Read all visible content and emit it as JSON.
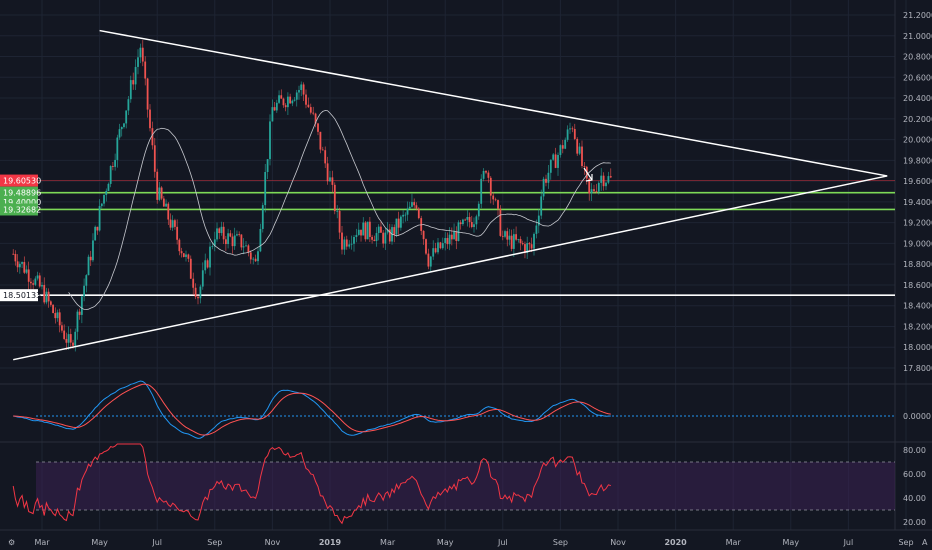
{
  "chart_data": {
    "type": "candlestick",
    "title": "",
    "price_axis": {
      "ticks": [
        "17.8000",
        "18.0000",
        "18.2000",
        "18.4000",
        "18.6000",
        "18.8000",
        "19.0000",
        "19.2000",
        "19.4000",
        "19.6000",
        "19.8000",
        "20.0000",
        "20.2000",
        "20.4000",
        "20.6000",
        "20.8000",
        "21.0000",
        "21.2000"
      ],
      "range": [
        17.7,
        21.25
      ]
    },
    "time_axis": {
      "labels": [
        "Mar",
        "May",
        "Jul",
        "Sep",
        "Nov",
        "2019",
        "Mar",
        "May",
        "Jul",
        "Sep",
        "Nov",
        "2020",
        "Mar",
        "May",
        "Jul",
        "Sep"
      ]
    },
    "price_tags": [
      {
        "text": "19.60530",
        "value": 19.6053,
        "color": "#f23645"
      },
      {
        "text": "19.48896",
        "value": 19.48896,
        "color": "#4caf50"
      },
      {
        "text": "19.40000",
        "value": 19.4,
        "color": "#4caf50"
      },
      {
        "text": "19.32682",
        "value": 19.32682,
        "color": "#4caf50"
      },
      {
        "text": "18.50133",
        "value": 18.50133,
        "color": "#ffffff"
      }
    ],
    "horizontal_levels": [
      {
        "value": 19.48896,
        "color": "#7ed957"
      },
      {
        "value": 19.32682,
        "color": "#7ed957"
      },
      {
        "value": 18.50133,
        "color": "#ffffff"
      }
    ],
    "trendlines": [
      {
        "name": "upper",
        "from": {
          "x": "May 2018",
          "y": 21.05
        },
        "to": {
          "x": "Aug 2020",
          "y": 19.65
        }
      },
      {
        "name": "lower",
        "from": {
          "x": "Feb 2018",
          "y": 17.88
        },
        "to": {
          "x": "Aug 2020",
          "y": 19.65
        }
      }
    ],
    "price_path": [
      [
        "Feb 2018",
        18.9
      ],
      [
        "Mar 2018",
        18.55
      ],
      [
        "Apr 2018",
        18.0
      ],
      [
        "May 2018",
        19.3
      ],
      [
        "Jun 2018",
        20.4
      ],
      [
        "Jun 2018",
        20.9
      ],
      [
        "Jul 2018",
        19.5
      ],
      [
        "Aug 2018",
        18.85
      ],
      [
        "Aug 2018",
        18.5
      ],
      [
        "Sep 2018",
        19.1
      ],
      [
        "Oct 2018",
        19.0
      ],
      [
        "Oct 2018",
        18.8
      ],
      [
        "Nov 2018",
        20.3
      ],
      [
        "Dec 2018",
        20.5
      ],
      [
        "Dec 2018",
        20.2
      ],
      [
        "Jan 2019",
        19.6
      ],
      [
        "Jan 2019",
        19.0
      ],
      [
        "Feb 2019",
        19.15
      ],
      [
        "Mar 2019",
        19.05
      ],
      [
        "Apr 2019",
        19.4
      ],
      [
        "Apr 2019",
        18.85
      ],
      [
        "May 2019",
        19.0
      ],
      [
        "Jun 2019",
        19.25
      ],
      [
        "Jun 2019",
        19.75
      ],
      [
        "Jul 2019",
        19.05
      ],
      [
        "Aug 2019",
        18.95
      ],
      [
        "Aug 2019",
        19.6
      ],
      [
        "Sep 2019",
        19.9
      ],
      [
        "Sep 2019",
        20.15
      ],
      [
        "Oct 2019",
        19.45
      ],
      [
        "Oct 2019",
        19.65
      ],
      [
        "Oct 2019",
        19.6
      ]
    ],
    "indicators": [
      {
        "name": "MACD",
        "ticks": [
          "0.0000"
        ]
      },
      {
        "name": "RSI",
        "ticks": [
          "80.00",
          "60.00",
          "40.00",
          "20.00"
        ],
        "levels": [
          70,
          30
        ]
      }
    ]
  },
  "annotations": {
    "arrow": "down-right-arrow-icon"
  },
  "colors": {
    "bg": "#131722",
    "up": "#26a69a",
    "down": "#ef5350",
    "grid": "#1e2433",
    "ma": "#c7c9cf",
    "rsi": "#f23645",
    "band": "#3a2052"
  }
}
